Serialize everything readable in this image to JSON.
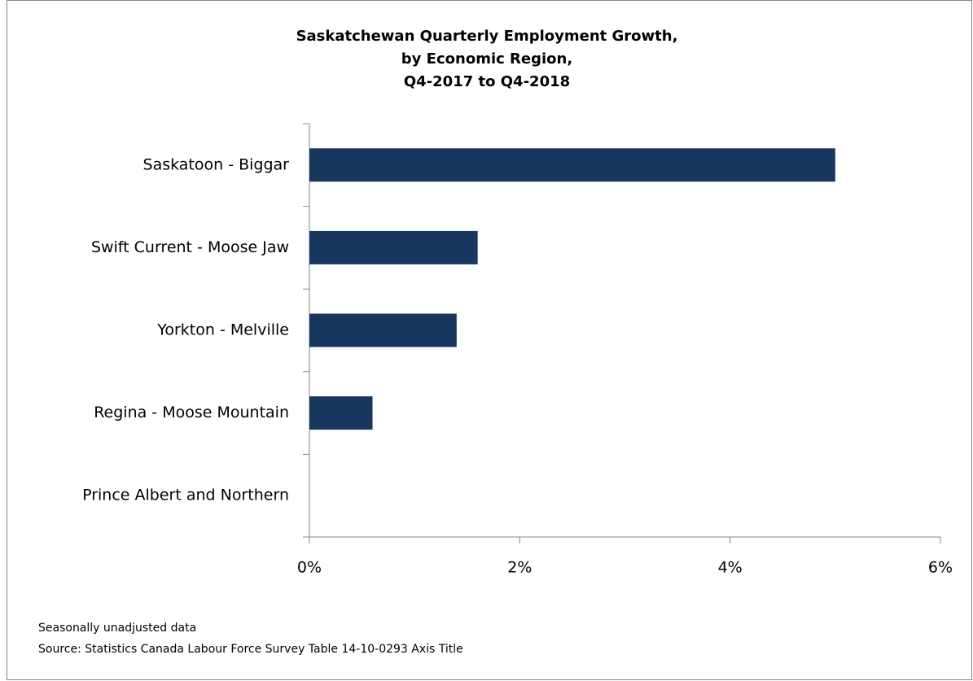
{
  "chart_data": {
    "type": "bar",
    "orientation": "horizontal",
    "title": [
      "Saskatchewan Quarterly Employment Growth,",
      "by Economic Region,",
      "Q4-2017 to Q4-2018"
    ],
    "categories": [
      "Saskatoon - Biggar",
      "Swift Current - Moose Jaw",
      "Yorkton - Melville",
      "Regina  - Moose Mountain",
      "Prince Albert and Northern"
    ],
    "values": [
      5.0,
      1.6,
      1.4,
      0.6,
      0
    ],
    "color": "#17375e",
    "xlim": [
      0,
      6
    ],
    "xticks": [
      {
        "value": 0,
        "label": "0%"
      },
      {
        "value": 2,
        "label": "2%"
      },
      {
        "value": 4,
        "label": "4%"
      },
      {
        "value": 6,
        "label": "6%"
      }
    ],
    "grid": false,
    "notes": [
      "Seasonally unadjusted data",
      "Source: Statistics Canada Labour Force Survey Table 14-10-0293 Axis Title"
    ]
  }
}
